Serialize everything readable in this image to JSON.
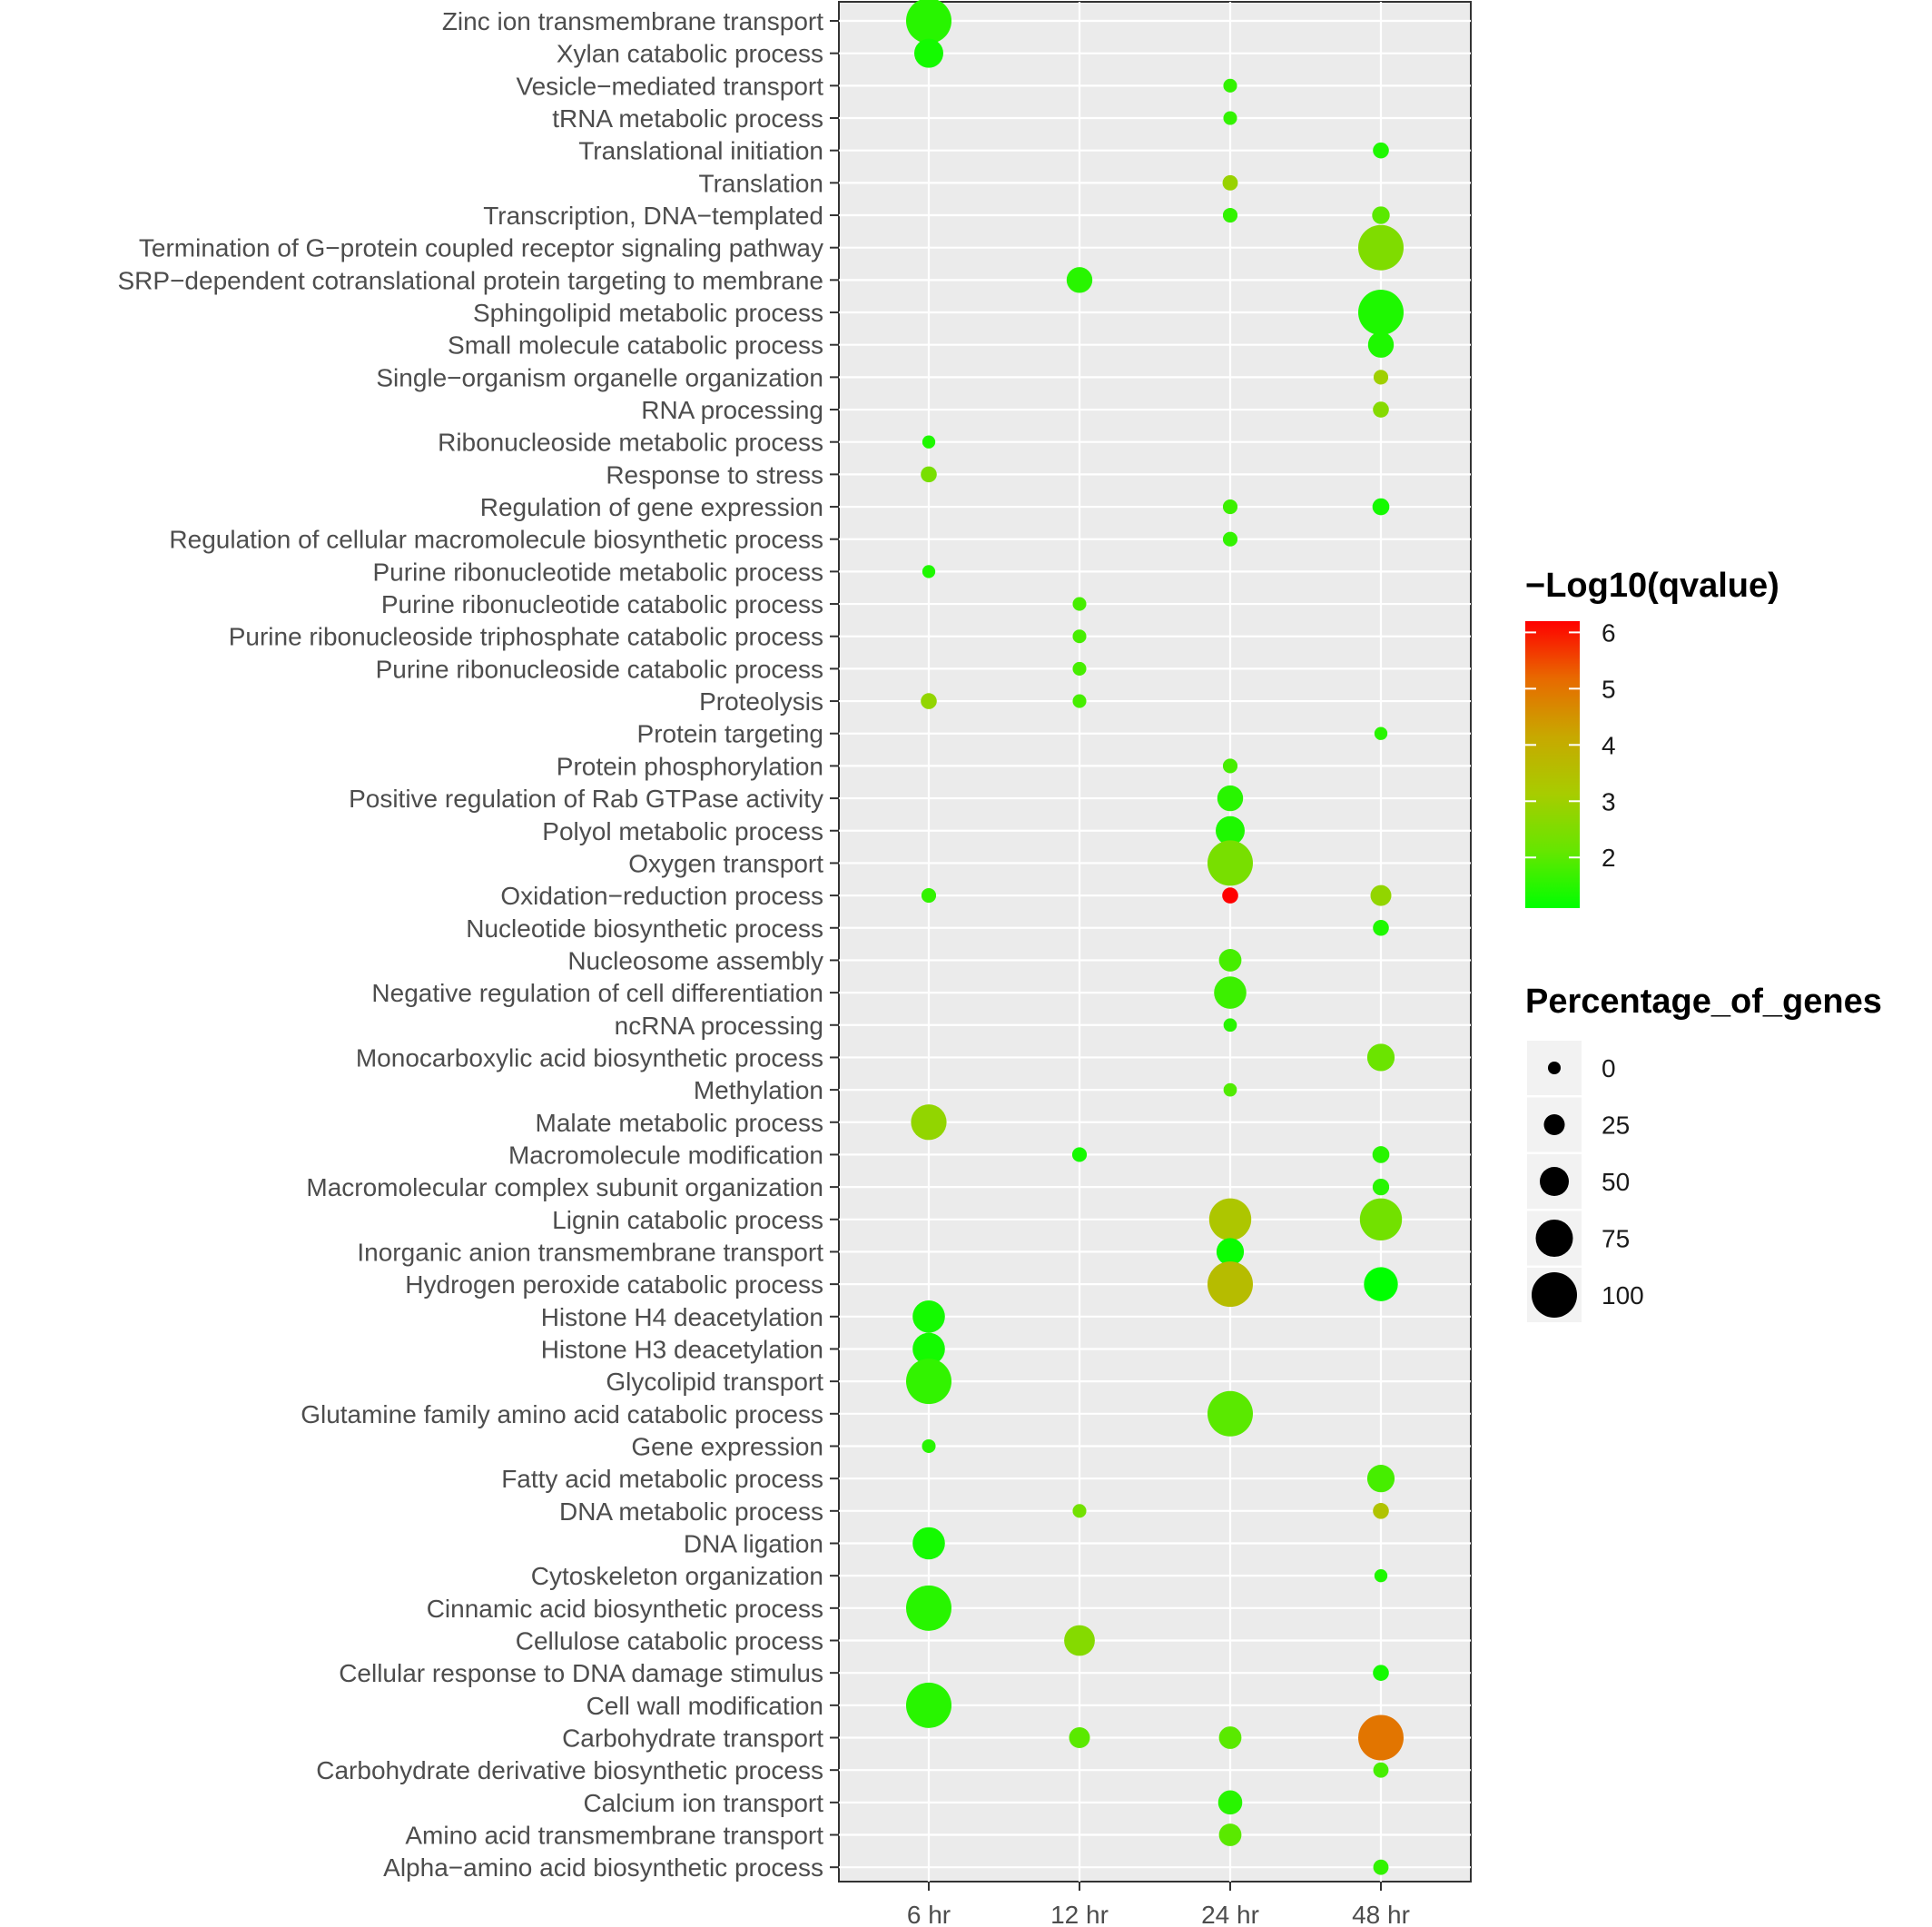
{
  "chart_data": {
    "type": "scatter",
    "x_categories": [
      "6 hr",
      "12 hr",
      "24 hr",
      "48 hr"
    ],
    "y_categories": [
      "Zinc ion transmembrane transport",
      "Xylan catabolic process",
      "Vesicle−mediated transport",
      "tRNA metabolic process",
      "Translational initiation",
      "Translation",
      "Transcription, DNA−templated",
      "Termination of G−protein coupled receptor signaling pathway",
      "SRP−dependent cotranslational protein targeting to membrane",
      "Sphingolipid metabolic process",
      "Small molecule catabolic process",
      "Single−organism organelle organization",
      "RNA processing",
      "Ribonucleoside metabolic process",
      "Response to stress",
      "Regulation of gene expression",
      "Regulation of cellular macromolecule biosynthetic process",
      "Purine ribonucleotide metabolic process",
      "Purine ribonucleotide catabolic process",
      "Purine ribonucleoside triphosphate catabolic process",
      "Purine ribonucleoside catabolic process",
      "Proteolysis",
      "Protein targeting",
      "Protein phosphorylation",
      "Positive regulation of Rab GTPase activity",
      "Polyol metabolic process",
      "Oxygen transport",
      "Oxidation−reduction process",
      "Nucleotide biosynthetic process",
      "Nucleosome assembly",
      "Negative regulation of cell differentiation",
      "ncRNA processing",
      "Monocarboxylic acid biosynthetic process",
      "Methylation",
      "Malate metabolic process",
      "Macromolecule modification",
      "Macromolecular complex subunit organization",
      "Lignin catabolic process",
      "Inorganic anion transmembrane transport",
      "Hydrogen peroxide catabolic process",
      "Histone H4 deacetylation",
      "Histone H3 deacetylation",
      "Glycolipid transport",
      "Glutamine family amino acid catabolic process",
      "Gene expression",
      "Fatty acid metabolic process",
      "DNA metabolic process",
      "DNA ligation",
      "Cytoskeleton organization",
      "Cinnamic acid biosynthetic process",
      "Cellulose catabolic process",
      "Cellular response to DNA damage stimulus",
      "Cell wall modification",
      "Carbohydrate transport",
      "Carbohydrate derivative biosynthetic process",
      "Calcium ion transport",
      "Amino acid transmembrane transport",
      "Alpha−amino acid biosynthetic process"
    ],
    "points": [
      {
        "y": "Zinc ion transmembrane transport",
        "x": "6 hr",
        "pct": 100,
        "q": 1.5
      },
      {
        "y": "Xylan catabolic process",
        "x": "6 hr",
        "pct": 50,
        "q": 1.3
      },
      {
        "y": "Vesicle−mediated transport",
        "x": "24 hr",
        "pct": 3,
        "q": 1.6
      },
      {
        "y": "tRNA metabolic process",
        "x": "24 hr",
        "pct": 3,
        "q": 1.6
      },
      {
        "y": "Translational initiation",
        "x": "48 hr",
        "pct": 10,
        "q": 1.4
      },
      {
        "y": "Translation",
        "x": "24 hr",
        "pct": 8,
        "q": 2.9
      },
      {
        "y": "Transcription, DNA−templated",
        "x": "24 hr",
        "pct": 6,
        "q": 1.6
      },
      {
        "y": "Transcription, DNA−templated",
        "x": "48 hr",
        "pct": 15,
        "q": 2.0
      },
      {
        "y": "Termination of G−protein coupled receptor signaling pathway",
        "x": "48 hr",
        "pct": 100,
        "q": 2.5
      },
      {
        "y": "SRP−dependent cotranslational protein targeting to membrane",
        "x": "12 hr",
        "pct": 40,
        "q": 1.5
      },
      {
        "y": "Sphingolipid metabolic process",
        "x": "48 hr",
        "pct": 100,
        "q": 1.4
      },
      {
        "y": "Small molecule catabolic process",
        "x": "48 hr",
        "pct": 40,
        "q": 1.4
      },
      {
        "y": "Single−organism organelle organization",
        "x": "48 hr",
        "pct": 6,
        "q": 3.0
      },
      {
        "y": "RNA processing",
        "x": "48 hr",
        "pct": 10,
        "q": 2.6
      },
      {
        "y": "Ribonucleoside metabolic process",
        "x": "6 hr",
        "pct": 1,
        "q": 1.4
      },
      {
        "y": "Response to stress",
        "x": "6 hr",
        "pct": 10,
        "q": 2.4
      },
      {
        "y": "Regulation of gene expression",
        "x": "24 hr",
        "pct": 6,
        "q": 1.7
      },
      {
        "y": "Regulation of gene expression",
        "x": "48 hr",
        "pct": 13,
        "q": 1.3
      },
      {
        "y": "Regulation of cellular macromolecule biosynthetic process",
        "x": "24 hr",
        "pct": 6,
        "q": 1.6
      },
      {
        "y": "Purine ribonucleotide metabolic process",
        "x": "6 hr",
        "pct": 1,
        "q": 1.4
      },
      {
        "y": "Purine ribonucleotide catabolic process",
        "x": "12 hr",
        "pct": 3,
        "q": 1.8
      },
      {
        "y": "Purine ribonucleoside triphosphate catabolic process",
        "x": "12 hr",
        "pct": 3,
        "q": 1.8
      },
      {
        "y": "Purine ribonucleoside catabolic process",
        "x": "12 hr",
        "pct": 3,
        "q": 1.8
      },
      {
        "y": "Proteolysis",
        "x": "6 hr",
        "pct": 10,
        "q": 2.8
      },
      {
        "y": "Proteolysis",
        "x": "12 hr",
        "pct": 3,
        "q": 1.8
      },
      {
        "y": "Protein targeting",
        "x": "48 hr",
        "pct": 1,
        "q": 1.5
      },
      {
        "y": "Protein phosphorylation",
        "x": "24 hr",
        "pct": 6,
        "q": 1.8
      },
      {
        "y": "Positive regulation of Rab GTPase activity",
        "x": "24 hr",
        "pct": 40,
        "q": 1.5
      },
      {
        "y": "Polyol metabolic process",
        "x": "24 hr",
        "pct": 50,
        "q": 1.4
      },
      {
        "y": "Oxygen transport",
        "x": "24 hr",
        "pct": 100,
        "q": 2.4
      },
      {
        "y": "Oxidation−reduction process",
        "x": "6 hr",
        "pct": 6,
        "q": 1.6
      },
      {
        "y": "Oxidation−reduction process",
        "x": "24 hr",
        "pct": 10,
        "q": 6.2
      },
      {
        "y": "Oxidation−reduction process",
        "x": "48 hr",
        "pct": 25,
        "q": 2.8
      },
      {
        "y": "Nucleotide biosynthetic process",
        "x": "48 hr",
        "pct": 10,
        "q": 1.4
      },
      {
        "y": "Nucleosome assembly",
        "x": "24 hr",
        "pct": 30,
        "q": 1.8
      },
      {
        "y": "Negative regulation of cell differentiation",
        "x": "24 hr",
        "pct": 60,
        "q": 1.7
      },
      {
        "y": "ncRNA processing",
        "x": "24 hr",
        "pct": 2,
        "q": 1.5
      },
      {
        "y": "Monocarboxylic acid biosynthetic process",
        "x": "48 hr",
        "pct": 45,
        "q": 2.2
      },
      {
        "y": "Methylation",
        "x": "24 hr",
        "pct": 2,
        "q": 1.9
      },
      {
        "y": "Malate metabolic process",
        "x": "6 hr",
        "pct": 70,
        "q": 2.8
      },
      {
        "y": "Macromolecule modification",
        "x": "12 hr",
        "pct": 6,
        "q": 1.3
      },
      {
        "y": "Macromolecule modification",
        "x": "48 hr",
        "pct": 13,
        "q": 1.5
      },
      {
        "y": "Macromolecular complex subunit organization",
        "x": "48 hr",
        "pct": 12,
        "q": 1.5
      },
      {
        "y": "Lignin catabolic process",
        "x": "24 hr",
        "pct": 90,
        "q": 3.3
      },
      {
        "y": "Lignin catabolic process",
        "x": "48 hr",
        "pct": 90,
        "q": 2.3
      },
      {
        "y": "Inorganic anion transmembrane transport",
        "x": "24 hr",
        "pct": 45,
        "q": 1.2
      },
      {
        "y": "Hydrogen peroxide catabolic process",
        "x": "24 hr",
        "pct": 100,
        "q": 3.6
      },
      {
        "y": "Hydrogen peroxide catabolic process",
        "x": "48 hr",
        "pct": 65,
        "q": 1.1
      },
      {
        "y": "Histone H4 deacetylation",
        "x": "6 hr",
        "pct": 60,
        "q": 1.3
      },
      {
        "y": "Histone H3 deacetylation",
        "x": "6 hr",
        "pct": 60,
        "q": 1.3
      },
      {
        "y": "Glycolipid transport",
        "x": "6 hr",
        "pct": 100,
        "q": 1.6
      },
      {
        "y": "Glutamine family amino acid catabolic process",
        "x": "24 hr",
        "pct": 100,
        "q": 2.0
      },
      {
        "y": "Gene expression",
        "x": "6 hr",
        "pct": 3,
        "q": 1.5
      },
      {
        "y": "Fatty acid metabolic process",
        "x": "48 hr",
        "pct": 45,
        "q": 1.8
      },
      {
        "y": "DNA metabolic process",
        "x": "12 hr",
        "pct": 3,
        "q": 2.3
      },
      {
        "y": "DNA metabolic process",
        "x": "48 hr",
        "pct": 10,
        "q": 3.4
      },
      {
        "y": "DNA ligation",
        "x": "6 hr",
        "pct": 60,
        "q": 1.3
      },
      {
        "y": "Cytoskeleton organization",
        "x": "48 hr",
        "pct": 1,
        "q": 1.4
      },
      {
        "y": "Cinnamic acid biosynthetic process",
        "x": "6 hr",
        "pct": 100,
        "q": 1.5
      },
      {
        "y": "Cellulose catabolic process",
        "x": "12 hr",
        "pct": 55,
        "q": 2.6
      },
      {
        "y": "Cellular response to DNA damage stimulus",
        "x": "48 hr",
        "pct": 10,
        "q": 1.3
      },
      {
        "y": "Cell wall modification",
        "x": "6 hr",
        "pct": 100,
        "q": 1.5
      },
      {
        "y": "Carbohydrate transport",
        "x": "12 hr",
        "pct": 25,
        "q": 2.0
      },
      {
        "y": "Carbohydrate transport",
        "x": "24 hr",
        "pct": 30,
        "q": 2.0
      },
      {
        "y": "Carbohydrate transport",
        "x": "48 hr",
        "pct": 100,
        "q": 5.0
      },
      {
        "y": "Carbohydrate derivative biosynthetic process",
        "x": "48 hr",
        "pct": 8,
        "q": 1.8
      },
      {
        "y": "Calcium ion transport",
        "x": "24 hr",
        "pct": 35,
        "q": 1.5
      },
      {
        "y": "Amino acid transmembrane transport",
        "x": "24 hr",
        "pct": 30,
        "q": 2.0
      },
      {
        "y": "Alpha−amino acid biosynthetic process",
        "x": "48 hr",
        "pct": 8,
        "q": 1.6
      }
    ],
    "color_scale": {
      "title": "−Log10(qvalue)",
      "min": 1.1,
      "max": 6.2,
      "ticks": [
        2,
        3,
        4,
        5,
        6
      ],
      "low_color": "#00ff00",
      "high_color": "#ff0000"
    },
    "size_scale": {
      "title": "Percentage_of_genes",
      "ticks": [
        0,
        25,
        50,
        75,
        100
      ]
    },
    "panel_background": "#ebebeb",
    "grid": true,
    "legend_position": "right"
  }
}
